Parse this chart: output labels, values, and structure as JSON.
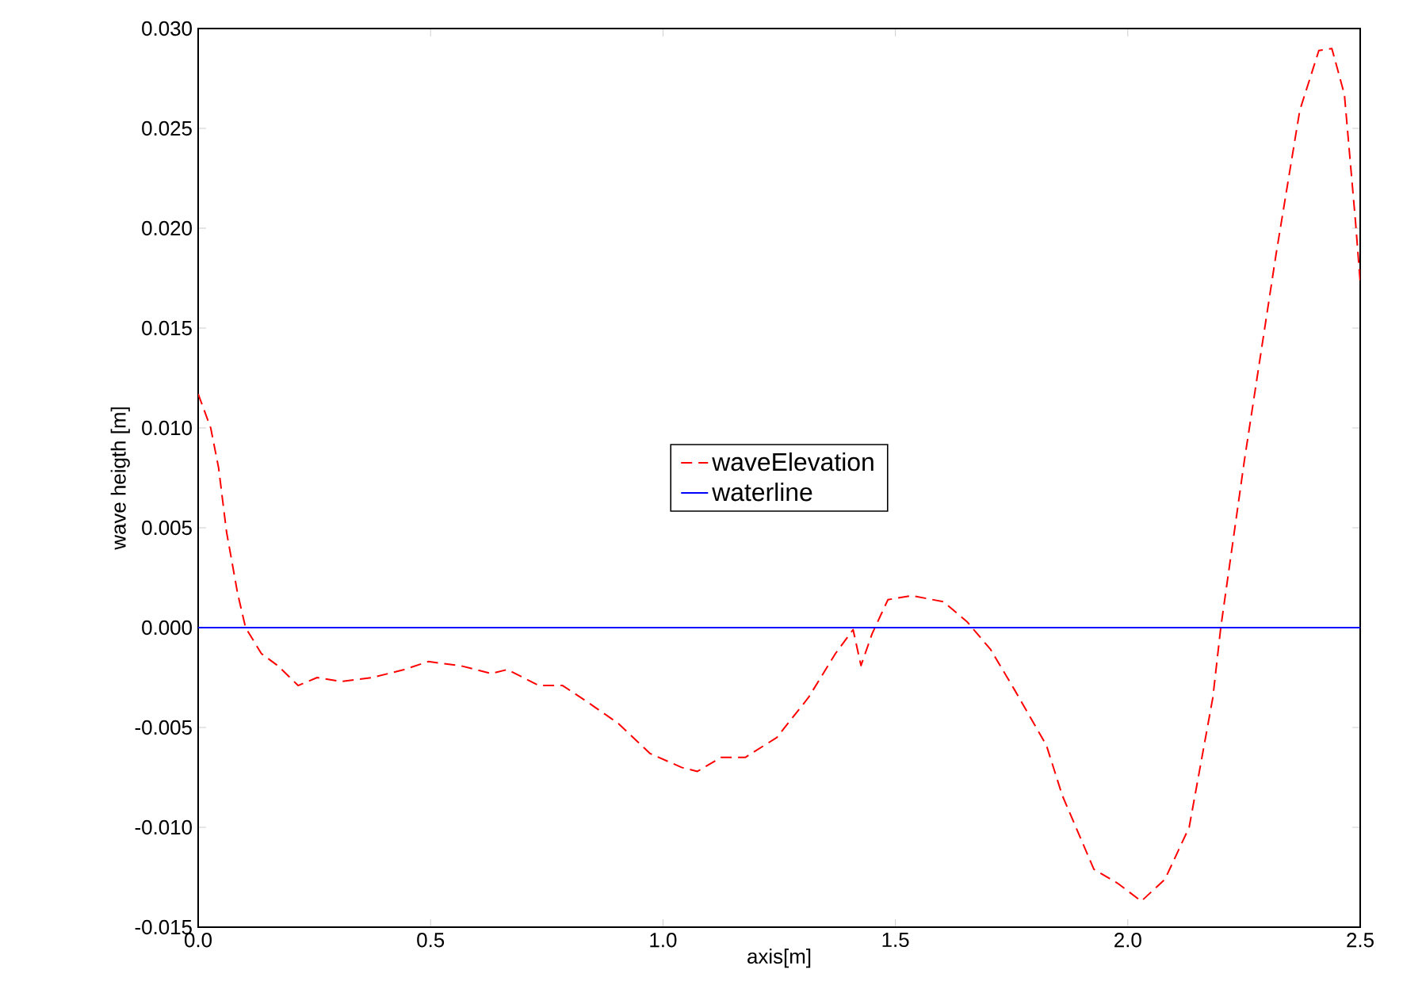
{
  "chart_data": {
    "type": "line",
    "xlabel": "axis[m]",
    "ylabel": "wave heigth [m]",
    "xlim": [
      0,
      2.5
    ],
    "ylim": [
      -0.015,
      0.03
    ],
    "xticks": [
      {
        "value": 0,
        "label": "0.0"
      },
      0.5,
      {
        "value": 1,
        "label": "1.0"
      },
      1.5,
      {
        "value": 2,
        "label": "2.0"
      },
      2.5
    ],
    "yticks": [
      -0.015,
      {
        "value": -0.01,
        "label": "-0.010"
      },
      -0.005,
      {
        "value": 0,
        "label": "0.000"
      },
      0.005,
      {
        "value": 0.01,
        "label": "0.010"
      },
      0.015,
      {
        "value": 0.02,
        "label": "0.020"
      },
      0.025,
      {
        "value": 0.03,
        "label": "0.030"
      }
    ],
    "legend": "center",
    "grid": false,
    "series": [
      {
        "name": "waveElevation",
        "color": "#ff0000",
        "line_style": "dashed",
        "x": [
          0,
          0.027,
          0.044,
          0.061,
          0.085,
          0.102,
          0.136,
          0.171,
          0.215,
          0.256,
          0.307,
          0.375,
          0.443,
          0.495,
          0.563,
          0.631,
          0.665,
          0.733,
          0.784,
          0.836,
          0.904,
          0.972,
          1.04,
          1.074,
          1.125,
          1.177,
          1.245,
          1.313,
          1.371,
          1.409,
          1.426,
          1.45,
          1.484,
          1.535,
          1.603,
          1.654,
          1.705,
          1.756,
          1.825,
          1.859,
          1.927,
          1.978,
          2.029,
          2.08,
          2.132,
          2.183,
          2.2,
          2.251,
          2.319,
          2.37,
          2.411,
          2.439,
          2.466,
          2.49,
          2.5
        ],
        "values": [
          0.0117,
          0.01,
          0.008,
          0.0048,
          0.0017,
          0,
          -0.0013,
          -0.0019,
          -0.0029,
          -0.0025,
          -0.0027,
          -0.0025,
          -0.0021,
          -0.0017,
          -0.0019,
          -0.0023,
          -0.0021,
          -0.0029,
          -0.0029,
          -0.0037,
          -0.0048,
          -0.0063,
          -0.007,
          -0.0072,
          -0.0065,
          -0.0065,
          -0.0055,
          -0.0035,
          -0.0013,
          -0.0001,
          -0.0019,
          -0.0003,
          0.0014,
          0.0016,
          0.0013,
          0.0003,
          -0.0011,
          -0.0031,
          -0.0059,
          -0.0084,
          -0.0121,
          -0.0128,
          -0.0137,
          -0.0126,
          -0.01,
          -0.0035,
          0,
          0.0084,
          0.0187,
          0.0259,
          0.0289,
          0.029,
          0.0267,
          0.0203,
          0.0173
        ]
      },
      {
        "name": "waterline",
        "color": "#0000ff",
        "line_style": "solid",
        "x": [
          0,
          2.5
        ],
        "values": [
          0,
          0
        ]
      }
    ]
  }
}
